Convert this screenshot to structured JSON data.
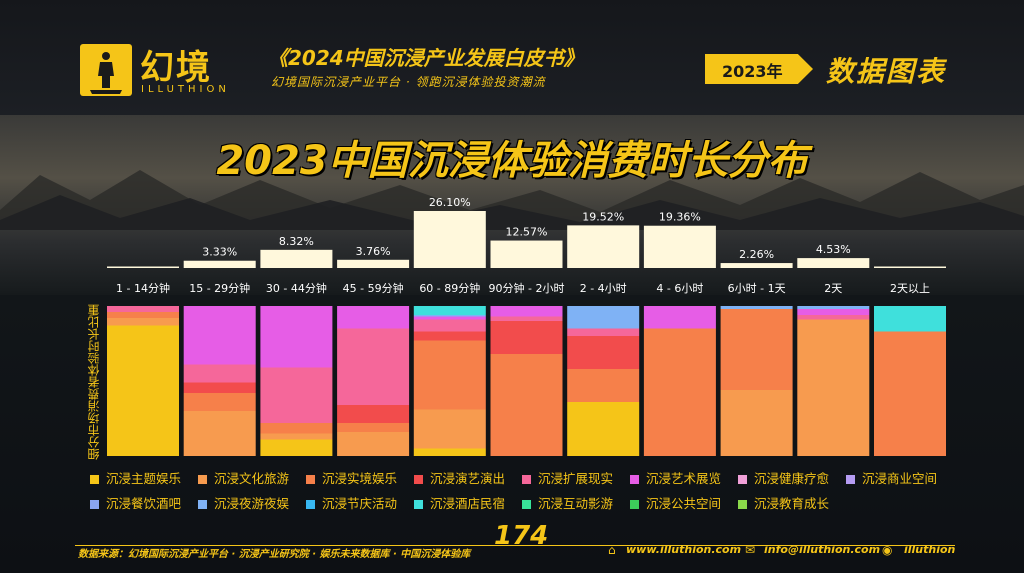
{
  "brand": {
    "name_cn": "幻境",
    "name_en": "ILLUTHION",
    "report_title": "《2024中国沉浸产业发展白皮书》",
    "report_subtitle": "幻境国际沉浸产业平台 · 领跑沉浸体验投资潮流",
    "year_tag": "2023年",
    "section": "数据图表"
  },
  "colors": {
    "accent": "#f5c518",
    "background": "#0e1014"
  },
  "chart_data": {
    "type": "bar",
    "title": "2023中国沉浸体验消费时长分布",
    "ylabel": "细分市场消费者体验时长比重",
    "categories": [
      "1 - 14分钟",
      "15 - 29分钟",
      "30 - 44分钟",
      "45 - 59分钟",
      "60 - 89分钟",
      "90分钟 - 2小时",
      "2 - 4小时",
      "4 - 6小时",
      "6小时 - 1天",
      "2天",
      "2天以上"
    ],
    "top_bar": {
      "values": [
        0,
        3.33,
        8.32,
        3.76,
        26.1,
        12.57,
        19.52,
        19.36,
        2.26,
        4.53,
        0
      ],
      "labels": [
        "",
        "3.33%",
        "8.32%",
        "3.76%",
        "26.10%",
        "12.57%",
        "19.52%",
        "19.36%",
        "2.26%",
        "4.53%",
        ""
      ],
      "ylim": [
        0,
        26.1
      ]
    },
    "stacked": {
      "series_names": [
        "沉浸主题娱乐",
        "沉浸文化旅游",
        "沉浸实境娱乐",
        "沉浸演艺演出",
        "沉浸扩展现实",
        "沉浸艺术展览",
        "沉浸健康疗愈",
        "沉浸商业空间",
        "沉浸餐饮酒吧",
        "沉浸夜游夜娱",
        "沉浸节庆活动",
        "沉浸酒店民宿",
        "沉浸互动影游",
        "沉浸公共空间",
        "沉浸教育成长"
      ],
      "series_colors": [
        "#f5c518",
        "#f79b4f",
        "#f6804a",
        "#f24c4c",
        "#f5679a",
        "#e65de6",
        "#f0a0d8",
        "#b59cf3",
        "#8aa6f2",
        "#7fb2f5",
        "#38b8f2",
        "#3fe0dc",
        "#38e49a",
        "#3ccd5a",
        "#8ad84a"
      ],
      "values": [
        [
          87,
          5,
          4,
          0,
          4,
          0,
          0,
          0,
          0,
          0,
          0,
          0,
          0,
          0,
          0
        ],
        [
          0,
          30,
          12,
          7,
          12,
          39,
          0,
          0,
          0,
          0,
          0,
          0,
          0,
          0,
          0
        ],
        [
          11,
          4,
          7,
          0,
          37,
          41,
          0,
          0,
          0,
          0,
          0,
          0,
          0,
          0,
          0
        ],
        [
          0,
          16,
          6,
          12,
          51,
          15,
          0,
          0,
          0,
          0,
          0,
          0,
          0,
          0,
          0
        ],
        [
          5,
          26,
          46,
          6,
          8,
          2,
          0,
          0,
          0,
          1,
          0,
          6,
          0,
          0,
          0
        ],
        [
          0,
          0,
          68,
          22,
          3,
          7,
          0,
          0,
          0,
          0,
          0,
          0,
          0,
          0,
          0
        ],
        [
          36,
          0,
          22,
          22,
          5,
          0,
          0,
          0,
          0,
          15,
          0,
          0,
          0,
          0,
          0
        ],
        [
          0,
          0,
          85,
          0,
          0,
          15,
          0,
          0,
          0,
          0,
          0,
          0,
          0,
          0,
          0
        ],
        [
          0,
          44,
          54,
          0,
          0,
          0,
          0,
          0,
          0,
          2,
          0,
          0,
          0,
          0,
          0
        ],
        [
          0,
          91,
          0,
          0,
          3,
          4,
          0,
          0,
          0,
          2,
          0,
          0,
          0,
          0,
          0
        ],
        [
          0,
          0,
          83,
          0,
          0,
          0,
          0,
          0,
          0,
          0,
          0,
          17,
          0,
          0,
          0
        ]
      ]
    }
  },
  "footer": {
    "source": "数据来源：幻境国际沉浸产业平台 · 沉浸产业研究院 · 娱乐未来数据库 · 中国沉浸体验库",
    "page_number": "174",
    "website": "www.illuthion.com",
    "email": "info@illuthion.com",
    "wechat": "illuthion"
  }
}
